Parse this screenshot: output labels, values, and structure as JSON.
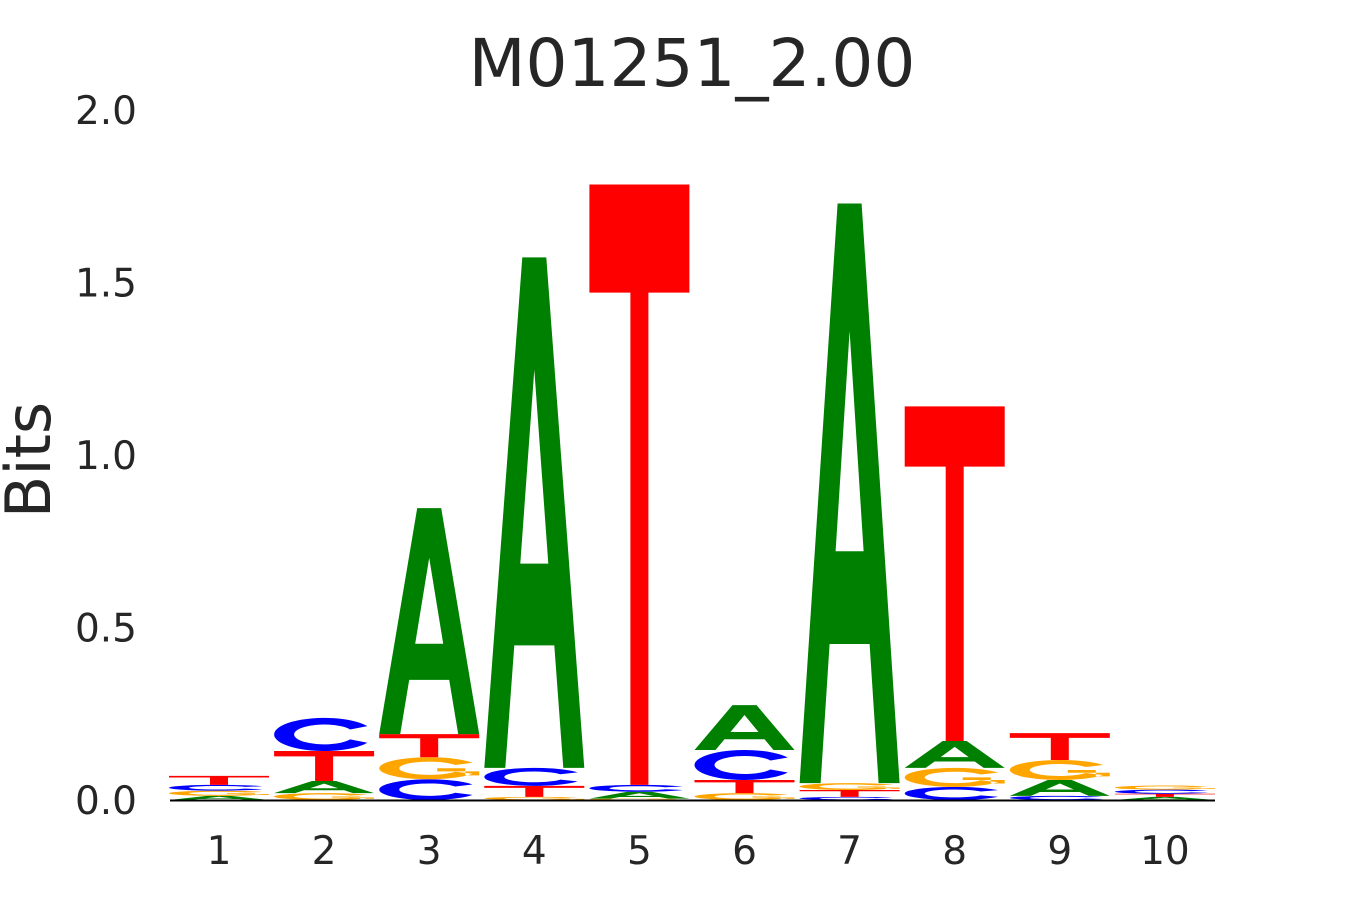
{
  "chart_data": {
    "type": "sequence-logo",
    "title": "M01251_2.00",
    "ylabel": "Bits",
    "xlabel": "",
    "ylim": [
      0,
      2.0
    ],
    "yticks": [
      "0.0",
      "0.5",
      "1.0",
      "1.5",
      "2.0"
    ],
    "categories": [
      "1",
      "2",
      "3",
      "4",
      "5",
      "6",
      "7",
      "8",
      "9",
      "10"
    ],
    "colors": {
      "A": "#008000",
      "C": "#0000ff",
      "G": "#ffa500",
      "T": "#ff0000"
    },
    "grid": false,
    "positions": [
      [
        [
          "A",
          0.012
        ],
        [
          "G",
          0.015
        ],
        [
          "C",
          0.017
        ],
        [
          "T",
          0.026
        ]
      ],
      [
        [
          "G",
          0.02
        ],
        [
          "A",
          0.035
        ],
        [
          "T",
          0.087
        ],
        [
          "C",
          0.096
        ]
      ],
      [
        [
          "C",
          0.06
        ],
        [
          "G",
          0.064
        ],
        [
          "T",
          0.067
        ],
        [
          "A",
          0.655
        ]
      ],
      [
        [
          "G",
          0.009
        ],
        [
          "T",
          0.032
        ],
        [
          "C",
          0.052
        ],
        [
          "A",
          1.48
        ]
      ],
      [
        [
          "G",
          0.004
        ],
        [
          "A",
          0.02
        ],
        [
          "C",
          0.02
        ],
        [
          "T",
          1.74
        ]
      ],
      [
        [
          "G",
          0.02
        ],
        [
          "T",
          0.038
        ],
        [
          "C",
          0.087
        ],
        [
          "A",
          0.13
        ]
      ],
      [
        [
          "C",
          0.009
        ],
        [
          "T",
          0.02
        ],
        [
          "G",
          0.02
        ],
        [
          "A",
          1.68
        ]
      ],
      [
        [
          "C",
          0.038
        ],
        [
          "G",
          0.055
        ],
        [
          "A",
          0.078
        ],
        [
          "T",
          0.97
        ]
      ],
      [
        [
          "C",
          0.012
        ],
        [
          "A",
          0.046
        ],
        [
          "G",
          0.058
        ],
        [
          "T",
          0.078
        ]
      ],
      [
        [
          "A",
          0.009
        ],
        [
          "T",
          0.009
        ],
        [
          "C",
          0.012
        ],
        [
          "G",
          0.012
        ]
      ]
    ]
  }
}
